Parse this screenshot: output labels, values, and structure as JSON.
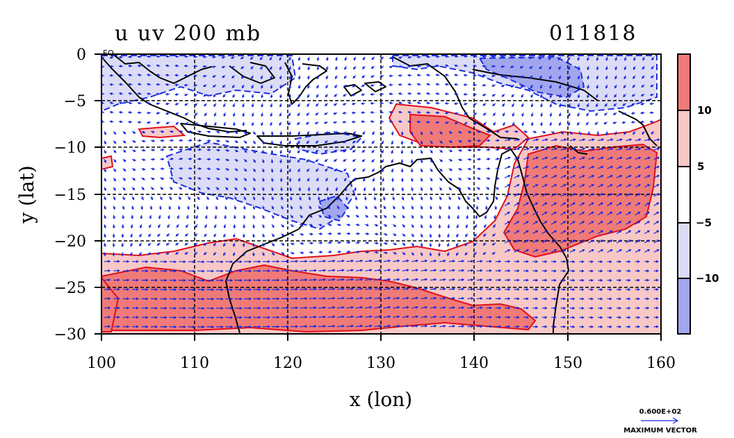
{
  "title_left": "u uv 200 mb",
  "title_right": "011818",
  "corner_label": "EQ",
  "colors": {
    "strong_pos": "#f07a78",
    "weak_pos": "#f7c8c6",
    "weak_neg": "#dcdcf6",
    "strong_neg": "#a2a6ee",
    "pos_contour": "#e0101a",
    "neg_contour": "#1c2ee0",
    "vector": "#1428e0",
    "coast": "#000000"
  },
  "chart_data": {
    "type": "heatmap",
    "xlabel": "x (lon)",
    "ylabel": "y (lat)",
    "xlim": [
      100,
      160
    ],
    "ylim": [
      -30,
      0
    ],
    "x_ticks": [
      "100",
      "110",
      "120",
      "130",
      "140",
      "150",
      "160"
    ],
    "y_ticks": [
      "0",
      "−5",
      "−10",
      "−15",
      "−20",
      "−25",
      "−30"
    ],
    "grid": true,
    "colorbar": {
      "labels": [
        "10",
        "5",
        "−5",
        "−10"
      ],
      "bins": [
        {
          "range": ">10",
          "color": "#f07a78"
        },
        {
          "range": "5 to 10",
          "color": "#f7c8c6"
        },
        {
          "range": "-5 to 5",
          "color": "#ffffff"
        },
        {
          "range": "-10 to -5",
          "color": "#dcdcf6"
        },
        {
          "range": "<-10",
          "color": "#a2a6ee"
        }
      ]
    },
    "vector_key": {
      "value": "0.600E+02",
      "label": "MAXIMUM VECTOR"
    }
  }
}
